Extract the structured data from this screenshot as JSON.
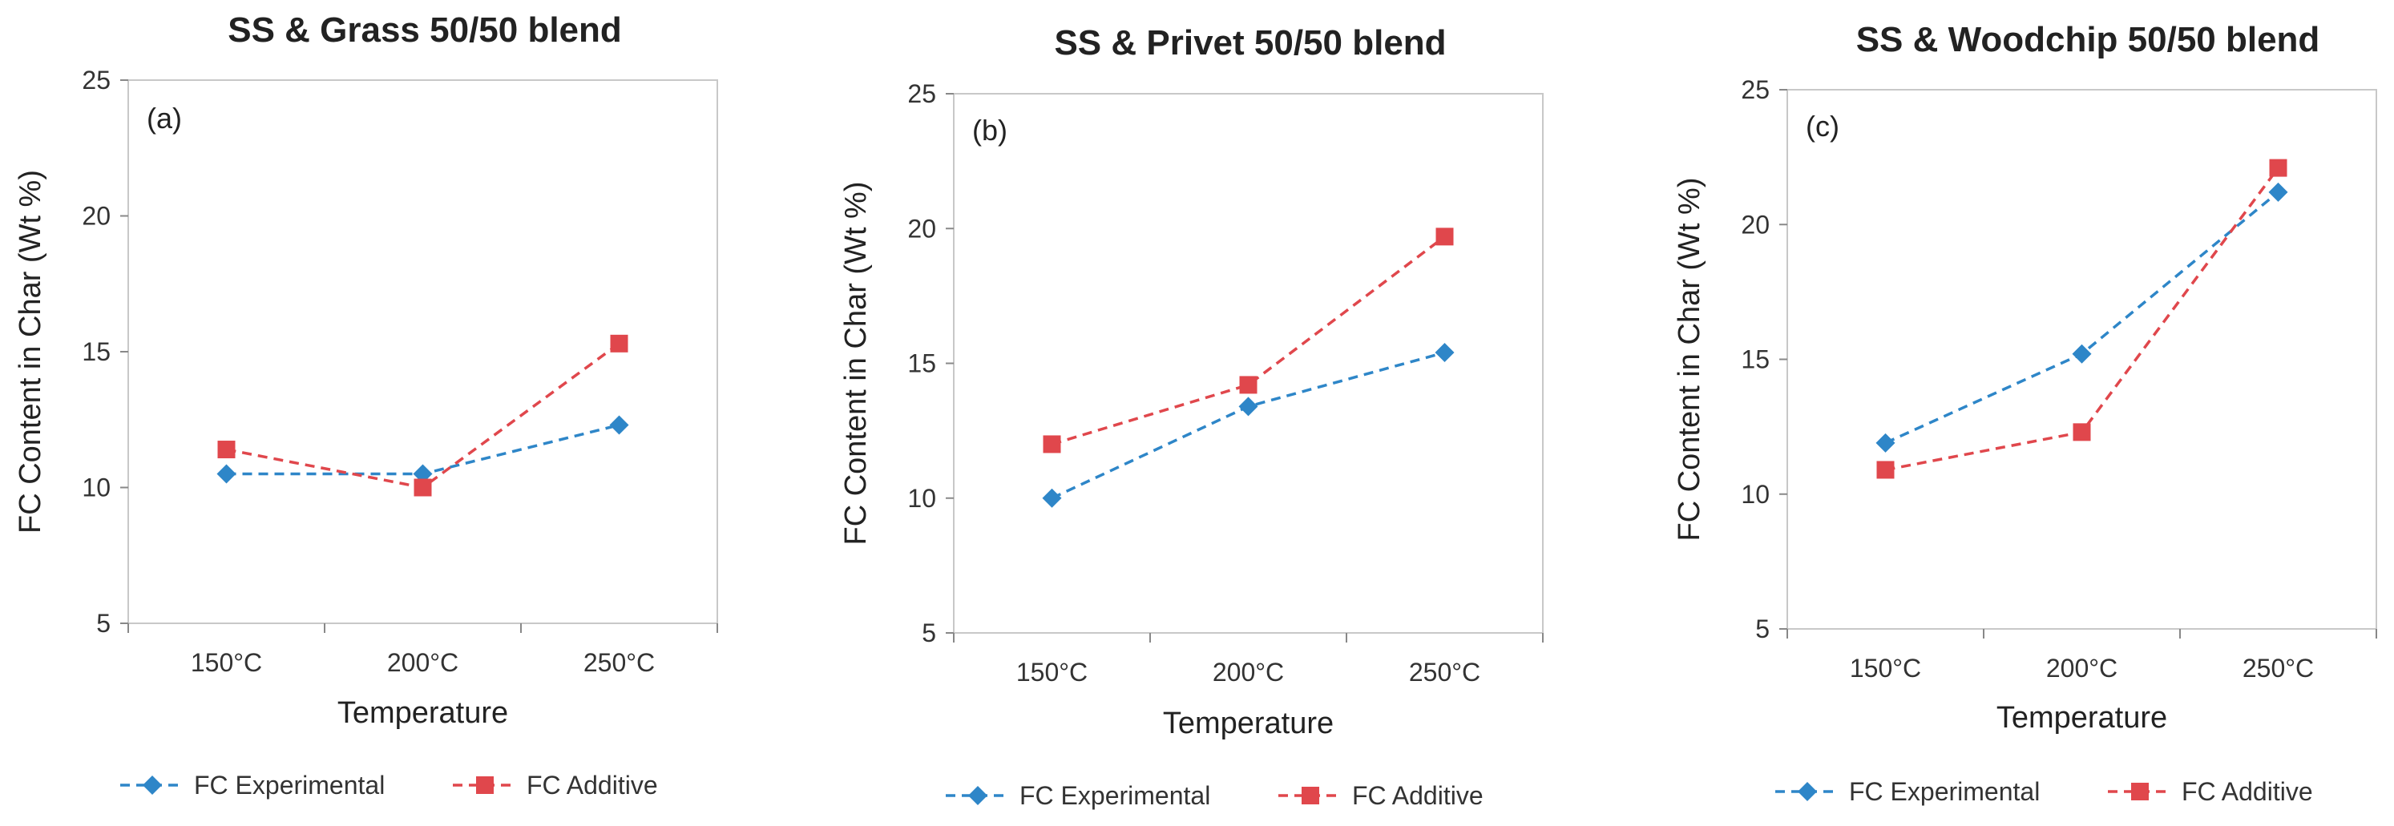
{
  "chart_data": [
    {
      "type": "line",
      "title": "SS & Grass 50/50 blend",
      "panel_label": "(a)",
      "categories": [
        "150°C",
        "200°C",
        "250°C"
      ],
      "xlabel": "Temperature",
      "ylabel": "FC Content in Char (Wt %)",
      "ylim": [
        5,
        25
      ],
      "yticks": [
        "5",
        "10",
        "15",
        "20",
        "25"
      ],
      "series": [
        {
          "name": "FC Experimental",
          "color": "#2e86c8",
          "marker": "diamond",
          "values": [
            10.5,
            10.5,
            12.3
          ]
        },
        {
          "name": "FC Additive",
          "color": "#e0474c",
          "marker": "square",
          "values": [
            11.4,
            10.0,
            15.3
          ]
        }
      ]
    },
    {
      "type": "line",
      "title": "SS & Privet 50/50 blend",
      "panel_label": "(b)",
      "categories": [
        "150°C",
        "200°C",
        "250°C"
      ],
      "xlabel": "Temperature",
      "ylabel": "FC Content in Char (Wt %)",
      "ylim": [
        5,
        25
      ],
      "yticks": [
        "5",
        "10",
        "15",
        "20",
        "25"
      ],
      "series": [
        {
          "name": "FC Experimental",
          "color": "#2e86c8",
          "marker": "diamond",
          "values": [
            10.0,
            13.4,
            15.4
          ]
        },
        {
          "name": "FC Additive",
          "color": "#e0474c",
          "marker": "square",
          "values": [
            12.0,
            14.2,
            19.7
          ]
        }
      ]
    },
    {
      "type": "line",
      "title": "SS & Woodchip 50/50 blend",
      "panel_label": "(c)",
      "categories": [
        "150°C",
        "200°C",
        "250°C"
      ],
      "xlabel": "Temperature",
      "ylabel": "FC Content in Char (Wt %)",
      "ylim": [
        5,
        25
      ],
      "yticks": [
        "5",
        "10",
        "15",
        "20",
        "25"
      ],
      "series": [
        {
          "name": "FC Experimental",
          "color": "#2e86c8",
          "marker": "diamond",
          "values": [
            11.9,
            15.2,
            21.2
          ]
        },
        {
          "name": "FC Additive",
          "color": "#e0474c",
          "marker": "square",
          "values": [
            10.9,
            12.3,
            22.1
          ]
        }
      ]
    }
  ]
}
